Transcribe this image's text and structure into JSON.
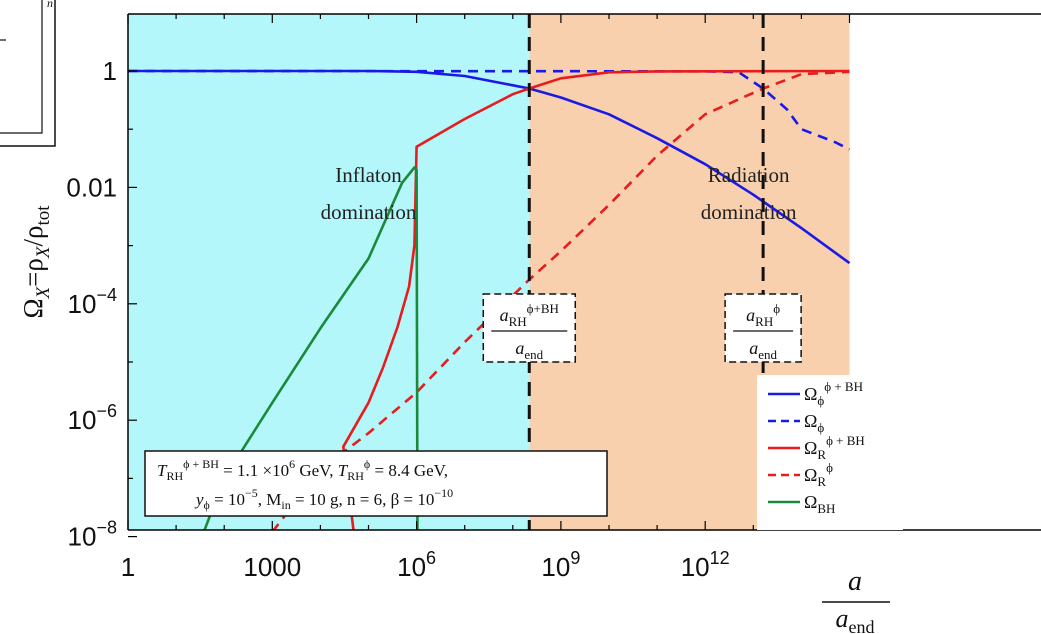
{
  "chart_data": {
    "type": "line",
    "x_scale": "log10",
    "y_scale": "log10",
    "xlim": [
      1,
      1000000000000000.0
    ],
    "ylim": [
      1e-08,
      10
    ],
    "x_ticks": [
      {
        "value": 1,
        "label": "1"
      },
      {
        "value": 1000,
        "label": "1000"
      },
      {
        "value": 1000000.0,
        "label": "10",
        "sup": "6"
      },
      {
        "value": 1000000000.0,
        "label": "10",
        "sup": "9"
      },
      {
        "value": 1000000000000.0,
        "label": "10",
        "sup": "12"
      }
    ],
    "y_ticks": [
      {
        "value": 1,
        "label": "1"
      },
      {
        "value": 0.01,
        "label": "0.01"
      },
      {
        "value": 0.0001,
        "label": "10",
        "sup": "−4"
      },
      {
        "value": 1e-06,
        "label": "10",
        "sup": "−6"
      },
      {
        "value": 1e-08,
        "label": "10",
        "sup": "−8"
      }
    ],
    "xlabel": {
      "num": "a",
      "den": "a",
      "den_sub": "end"
    },
    "ylabel": {
      "main": "Ω",
      "sub1": "X",
      "eq": "=ρ",
      "sub2": "X",
      "slash": "/ρ",
      "sub3": "tot"
    },
    "regions": [
      {
        "name": "Inflaton domination",
        "from": 1,
        "to": 220000000.0,
        "color": "#b3f7fb",
        "line1": "Inflaton",
        "line2": "domination",
        "label_x": 100000.0,
        "label_y": 0.0125
      },
      {
        "name": "Radiation domination",
        "from": 220000000.0,
        "to": 1000000000000000.0,
        "color": "#f9d0ad",
        "line1": "Radiation",
        "line2": "domination",
        "label_x": 8000000000000.0,
        "label_y": 0.0125
      }
    ],
    "vlines": [
      {
        "x": 220000000.0,
        "label_main": "a",
        "label_sub": "RH",
        "label_sup": "ϕ+BH",
        "label_den": "a",
        "label_den_sub": "end",
        "label_y": 6e-05
      },
      {
        "x": 16000000000000.0,
        "label_main": "a",
        "label_sub": "RH",
        "label_sup": "ϕ",
        "label_den": "a",
        "label_den_sub": "end",
        "label_y": 6e-05
      }
    ],
    "series": [
      {
        "legend_main": "Ω",
        "legend_sub": "ϕ",
        "legend_sup": "ϕ + BH",
        "color": "#1a1ae6",
        "dash": false,
        "points": [
          [
            1,
            1
          ],
          [
            100000.0,
            1
          ],
          [
            1000000.0,
            0.97
          ],
          [
            10000000.0,
            0.82
          ],
          [
            220000000.0,
            0.5
          ],
          [
            1000000000.0,
            0.35
          ],
          [
            10000000000.0,
            0.18
          ],
          [
            100000000000.0,
            0.07
          ],
          [
            1000000000000.0,
            0.025
          ],
          [
            10000000000000.0,
            0.0075
          ],
          [
            100000000000000.0,
            0.002
          ],
          [
            1000000000000000.0,
            0.0005
          ]
        ]
      },
      {
        "legend_main": "Ω",
        "legend_sub": "ϕ",
        "legend_sup": "",
        "color": "#1a1ae6",
        "dash": true,
        "points": [
          [
            1,
            1
          ],
          [
            1000000000000.0,
            0.99
          ],
          [
            5000000000000.0,
            0.95
          ],
          [
            16000000000000.0,
            0.5
          ],
          [
            50000000000000.0,
            0.22
          ],
          [
            100000000000000.0,
            0.1
          ],
          [
            500000000000000.0,
            0.06
          ],
          [
            1000000000000000.0,
            0.045
          ]
        ]
      },
      {
        "legend_main": "Ω",
        "legend_sub": "R",
        "legend_sup": "ϕ + BH",
        "color": "#e81c1c",
        "dash": false,
        "points": [
          [
            100000,
            1e-10
          ],
          [
            30000.0,
            3.5e-07
          ],
          [
            100000.0,
            2e-06
          ],
          [
            200000.0,
            8e-06
          ],
          [
            400000.0,
            4e-05
          ],
          [
            700000.0,
            0.0002
          ],
          [
            900000.0,
            0.001
          ],
          [
            1000000.0,
            0.05
          ],
          [
            10000000.0,
            0.15
          ],
          [
            100000000.0,
            0.4
          ],
          [
            220000000.0,
            0.5
          ],
          [
            1000000000.0,
            0.75
          ],
          [
            10000000000.0,
            0.95
          ],
          [
            100000000000.0,
            0.985
          ],
          [
            1000000000000000.0,
            1.0
          ]
        ]
      },
      {
        "legend_main": "Ω",
        "legend_sub": "R",
        "legend_sup": "ϕ",
        "color": "#e81c1c",
        "dash": true,
        "points": [
          [
            1000.0,
            1.2e-08
          ],
          [
            10000.0,
            1.4e-07
          ],
          [
            100000.0,
            6e-07
          ],
          [
            1000000.0,
            3e-06
          ],
          [
            10000000.0,
            2.2e-05
          ],
          [
            220000000.0,
            0.00026
          ],
          [
            1000000000.0,
            0.0008
          ],
          [
            10000000000.0,
            0.005
          ],
          [
            100000000000.0,
            0.035
          ],
          [
            1000000000000.0,
            0.18
          ],
          [
            16000000000000.0,
            0.5
          ],
          [
            100000000000000.0,
            0.88
          ],
          [
            1000000000000000.0,
            0.97
          ]
        ]
      },
      {
        "legend_main": "Ω",
        "legend_sub": "BH",
        "legend_sup": "",
        "color": "#1a8a3a",
        "dash": false,
        "points": [
          [
            12,
            1e-09
          ],
          [
            100.0,
            1e-07
          ],
          [
            1000.0,
            2e-06
          ],
          [
            10000.0,
            3.8e-05
          ],
          [
            100000.0,
            0.0006
          ],
          [
            500000.0,
            0.012
          ],
          [
            900000.0,
            0.022
          ],
          [
            1000000.0,
            0.02
          ],
          [
            1050000.0,
            1e-09
          ]
        ]
      }
    ],
    "info_box": {
      "line1": "T_RH^{ϕ+BH} = 1.1 ×10^6 GeV,  T_RH^ϕ = 8.4 GeV,",
      "line2": "y_ϕ = 10^−5, M_in = 10 g,  n = 6,  β = 10^−10",
      "t": "T",
      "rh": "RH",
      "sup1": "ϕ + BH",
      "eq1": " = 1.1 ×10",
      "exp6": "6",
      "gev1": " GeV, ",
      "sup2": "ϕ",
      "eq2": " = 8.4 GeV,",
      "y": "y",
      "ysub": "ϕ",
      "eq3": " = 10",
      "exp5": "−5",
      "min_pre": ", M",
      "min_sub": "in",
      "min_post": " = 10 g,  n = 6,  β = 10",
      "exp10": "−10"
    },
    "corner_fragment": "n",
    "grid": false,
    "legend_position": "lower-right"
  }
}
